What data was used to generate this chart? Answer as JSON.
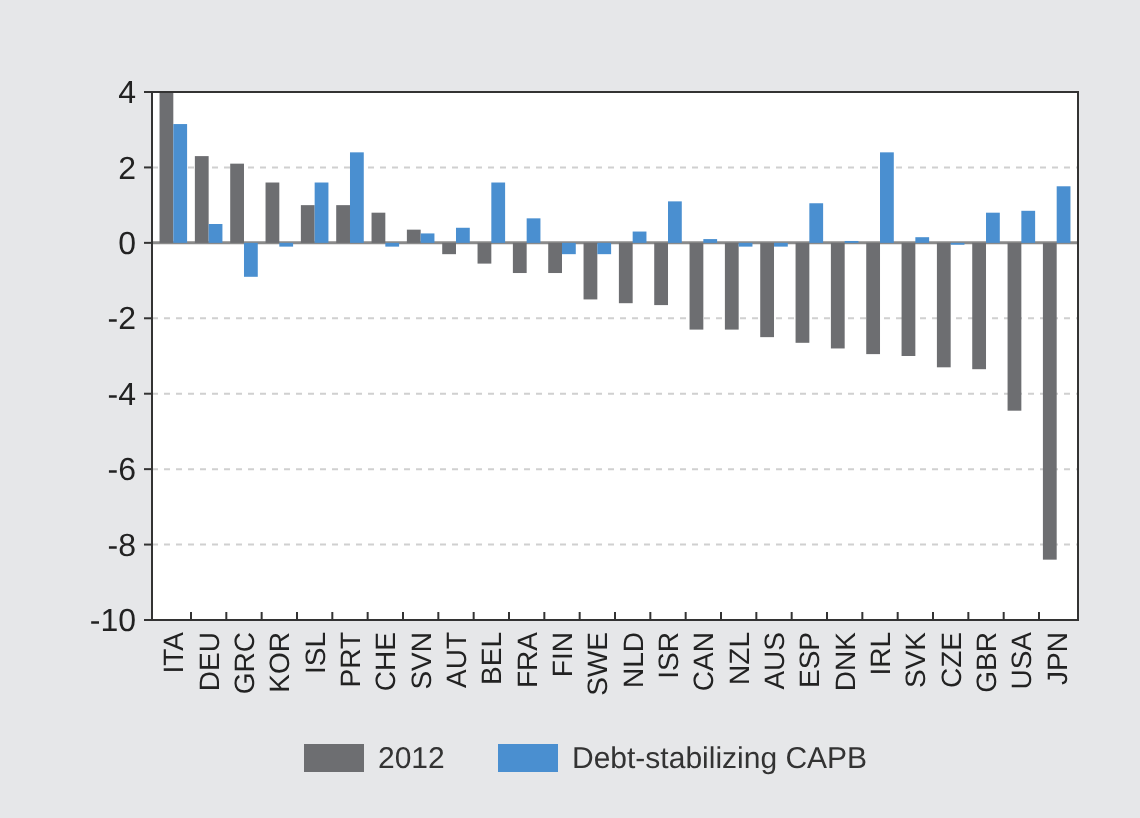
{
  "chart_data": {
    "type": "bar",
    "categories": [
      "ITA",
      "DEU",
      "GRC",
      "KOR",
      "ISL",
      "PRT",
      "CHE",
      "SVN",
      "AUT",
      "BEL",
      "FRA",
      "FIN",
      "SWE",
      "NLD",
      "ISR",
      "CAN",
      "NZL",
      "AUS",
      "ESP",
      "DNK",
      "IRL",
      "SVK",
      "CZE",
      "GBR",
      "USA",
      "JPN"
    ],
    "series": [
      {
        "name": "2012",
        "color": "#6d6e71",
        "values": [
          4.0,
          2.3,
          2.1,
          1.6,
          1.0,
          1.0,
          0.8,
          0.35,
          -0.3,
          -0.55,
          -0.8,
          -0.8,
          -1.5,
          -1.6,
          -1.65,
          -2.3,
          -2.3,
          -2.5,
          -2.65,
          -2.8,
          -2.95,
          -3.0,
          -3.3,
          -3.35,
          -4.45,
          -8.4
        ]
      },
      {
        "name": "Debt-stabilizing CAPB",
        "color": "#4a8fd0",
        "values": [
          3.15,
          0.5,
          -0.9,
          -0.1,
          1.6,
          2.4,
          -0.1,
          0.25,
          0.4,
          1.6,
          0.65,
          -0.3,
          -0.3,
          0.3,
          1.1,
          0.1,
          -0.1,
          -0.1,
          1.05,
          0.05,
          2.4,
          0.15,
          -0.05,
          0.8,
          0.85,
          1.5
        ]
      }
    ],
    "ylim": [
      -10,
      4
    ],
    "yticks": [
      -10,
      -8,
      -6,
      -4,
      -2,
      0,
      2,
      4
    ],
    "grid": "y",
    "legend": "bottom"
  }
}
